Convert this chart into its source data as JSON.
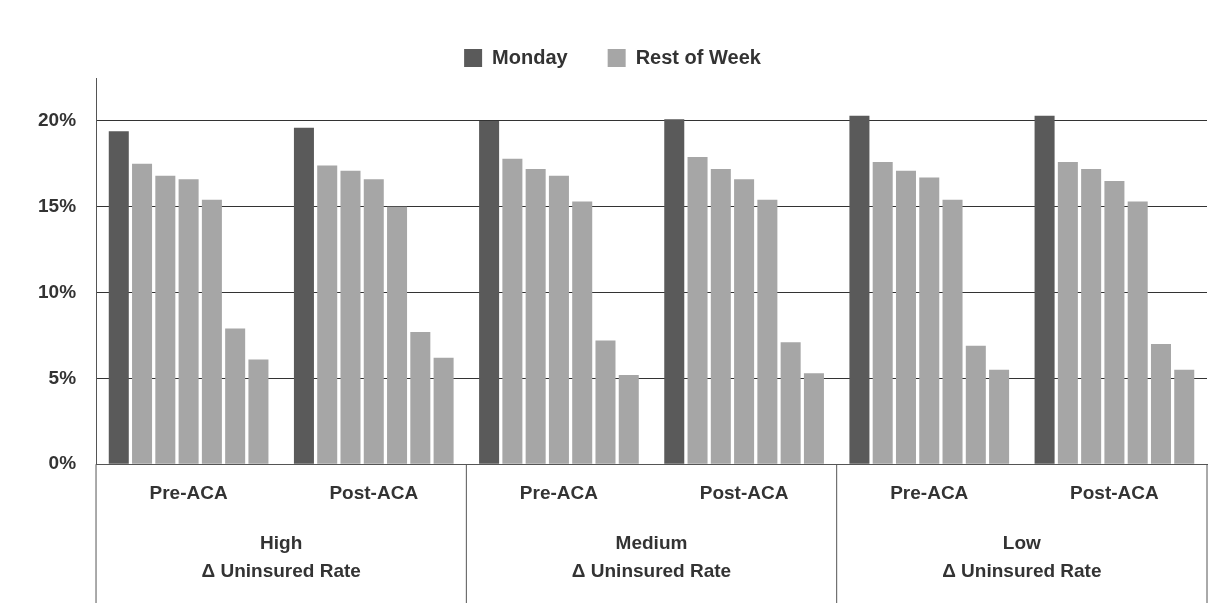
{
  "chart_data": {
    "type": "bar",
    "categories": [
      "Pre-ACA",
      "Post-ACA",
      "Pre-ACA",
      "Post-ACA",
      "Pre-ACA",
      "Post-ACA"
    ],
    "series": [
      {
        "name": "Monday",
        "color": "#5a5a5a",
        "values": [
          19.4,
          19.6,
          20.0,
          20.1,
          20.3,
          20.3
        ]
      },
      {
        "name": "Rest of Week",
        "color": "#a6a6a6",
        "values": [
          17.5,
          17.4,
          17.8,
          17.9,
          17.6,
          17.6
        ]
      },
      {
        "color": "#a6a6a6",
        "values": [
          16.8,
          17.1,
          17.2,
          17.2,
          17.1,
          17.2
        ]
      },
      {
        "color": "#a6a6a6",
        "values": [
          16.6,
          16.6,
          16.8,
          16.6,
          16.7,
          16.5
        ]
      },
      {
        "color": "#a6a6a6",
        "values": [
          15.4,
          15.0,
          15.3,
          15.4,
          15.4,
          15.3
        ]
      },
      {
        "color": "#a6a6a6",
        "values": [
          7.9,
          7.7,
          7.2,
          7.1,
          6.9,
          7.0
        ]
      },
      {
        "color": "#a6a6a6",
        "values": [
          6.1,
          6.2,
          5.2,
          5.3,
          5.5,
          5.5
        ]
      }
    ],
    "annotations": [
      "High\nΔ Uninsured Rate",
      "Medium\nΔ Uninsured Rate",
      "Low\nΔ Uninsured Rate"
    ],
    "ylim": [
      0,
      22.5
    ],
    "yticks": [
      {
        "value": 0,
        "label": "0%"
      },
      {
        "value": 5,
        "label": "5%"
      },
      {
        "value": 10,
        "label": "10%"
      },
      {
        "value": 15,
        "label": "15%"
      },
      {
        "value": 20,
        "label": "20%"
      }
    ],
    "grid": "y",
    "legend": "top"
  }
}
